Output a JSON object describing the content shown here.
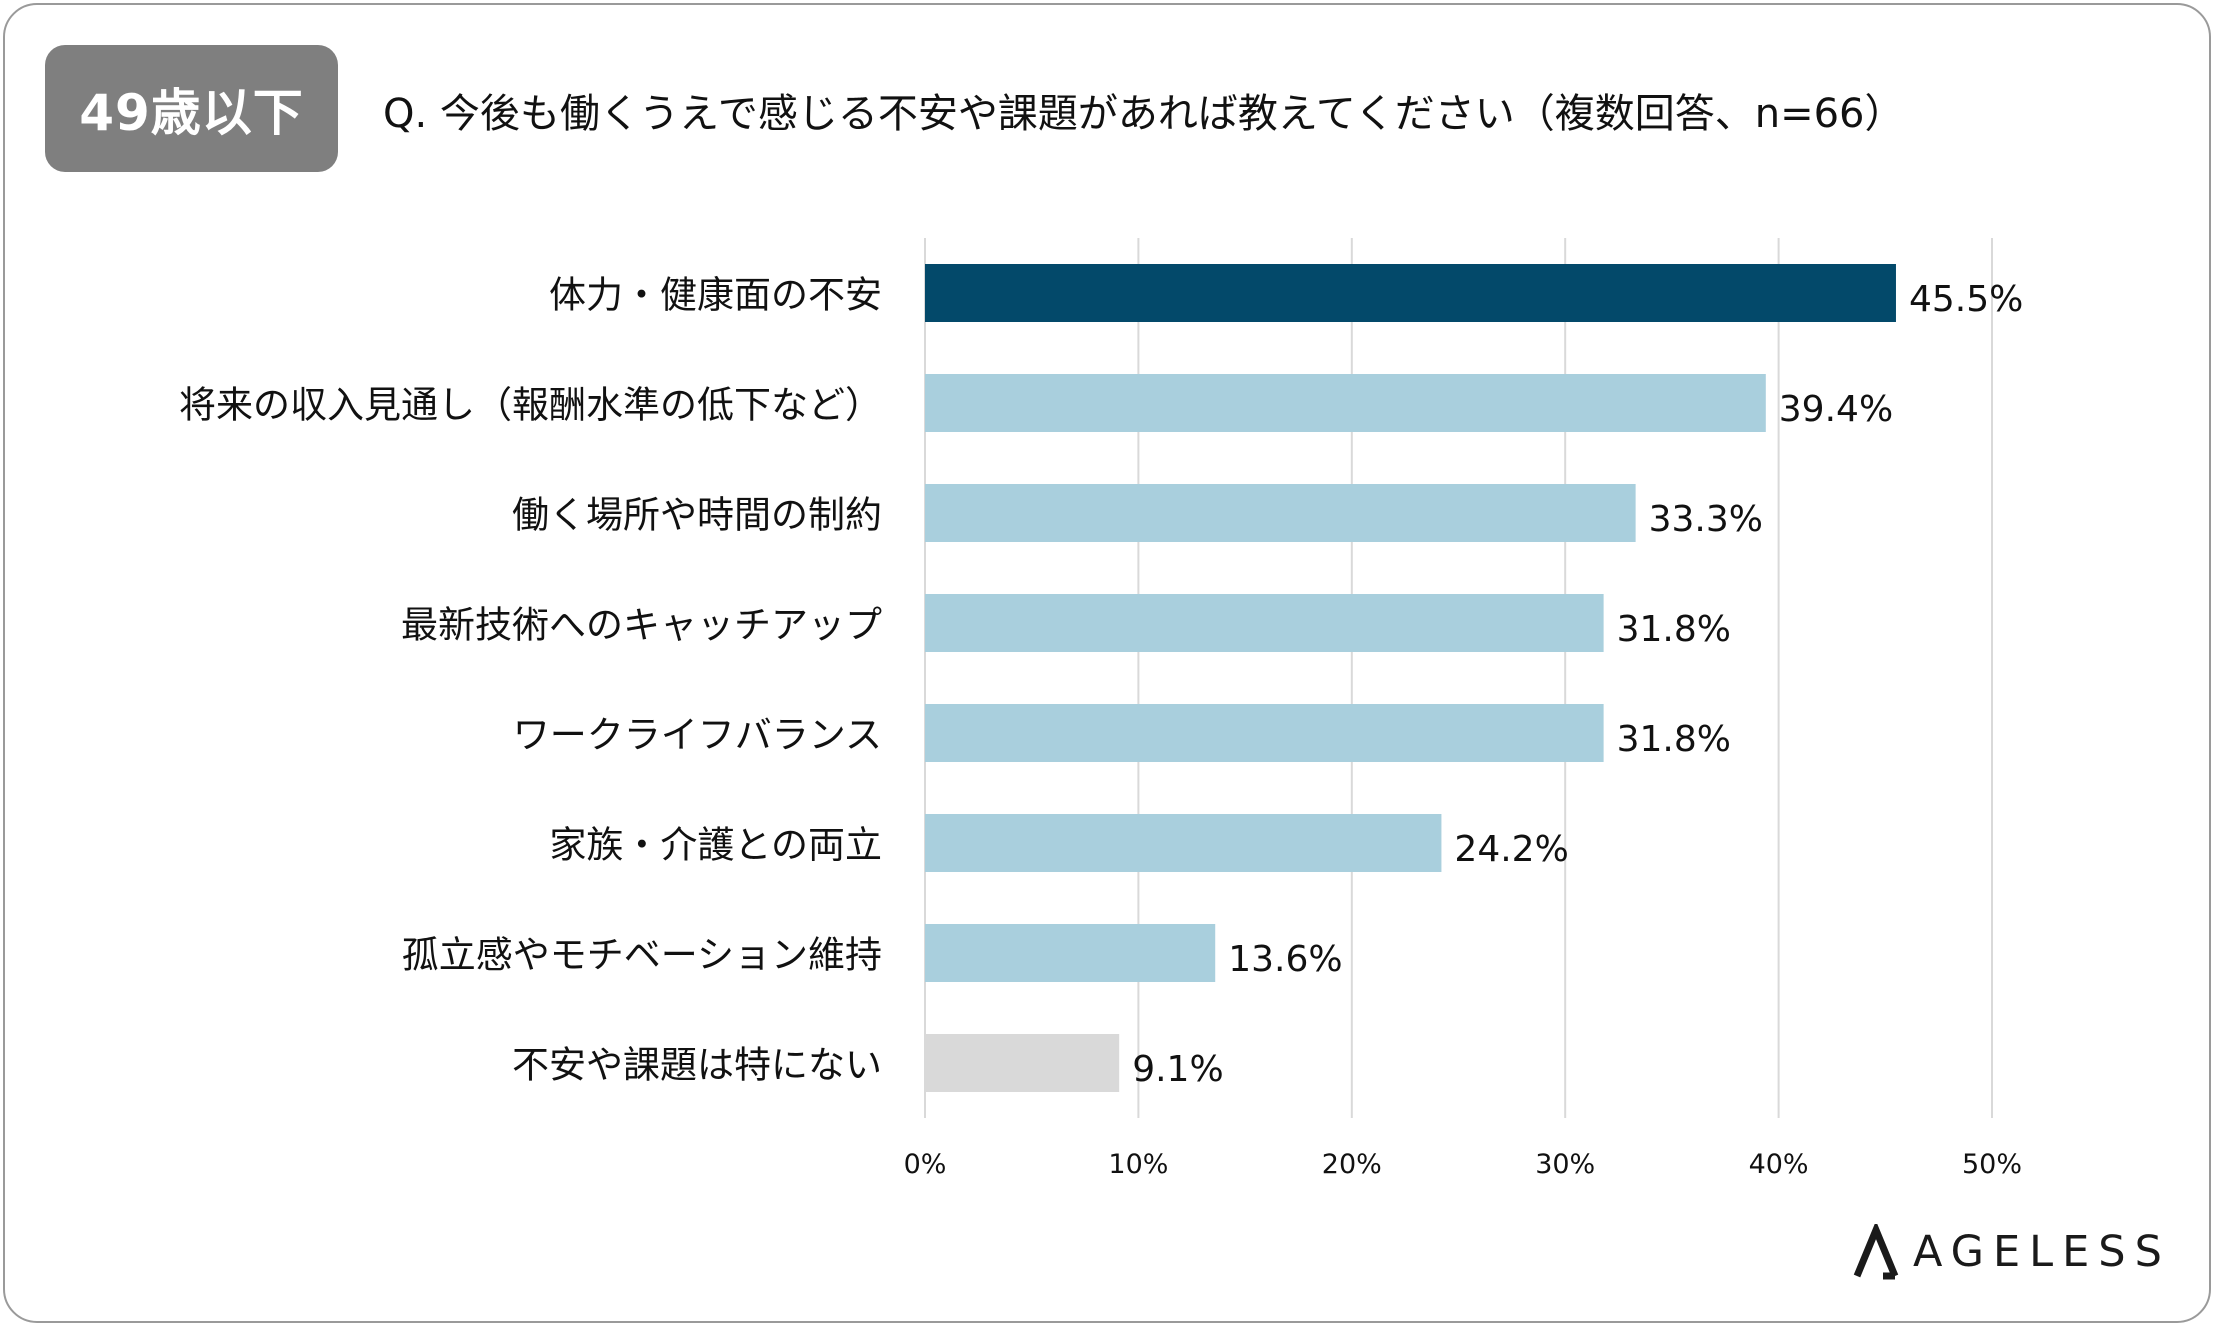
{
  "badge": "49歳以下",
  "question": "Q. 今後も働くうえで感じる不安や課題があれば教えてください（複数回答、n=66）",
  "logo_text": "AGELESS",
  "chart_data": {
    "type": "bar",
    "orientation": "horizontal",
    "title": "Q. 今後も働くうえで感じる不安や課題があれば教えてください（複数回答、n=66）",
    "categories": [
      "体力・健康面の不安",
      "将来の収入見通し（報酬水準の低下など）",
      "働く場所や時間の制約",
      "最新技術へのキャッチアップ",
      "ワークライフバランス",
      "家族・介護との両立",
      "孤立感やモチベーション維持",
      "不安や課題は特にない"
    ],
    "values": [
      45.5,
      39.4,
      33.3,
      31.8,
      31.8,
      24.2,
      13.6,
      9.1
    ],
    "value_labels": [
      "45.5%",
      "39.4%",
      "33.3%",
      "31.8%",
      "31.8%",
      "24.2%",
      "13.6%",
      "9.1%"
    ],
    "colors": [
      "#03496a",
      "#a9cfdd",
      "#a9cfdd",
      "#a9cfdd",
      "#a9cfdd",
      "#a9cfdd",
      "#a9cfdd",
      "#d9d9d9"
    ],
    "xlim": [
      0,
      50
    ],
    "xticks": [
      0,
      10,
      20,
      30,
      40,
      50
    ],
    "xtick_labels": [
      "0%",
      "10%",
      "20%",
      "30%",
      "40%",
      "50%"
    ],
    "grid": true,
    "gridline_color": "#d9d9d9"
  }
}
